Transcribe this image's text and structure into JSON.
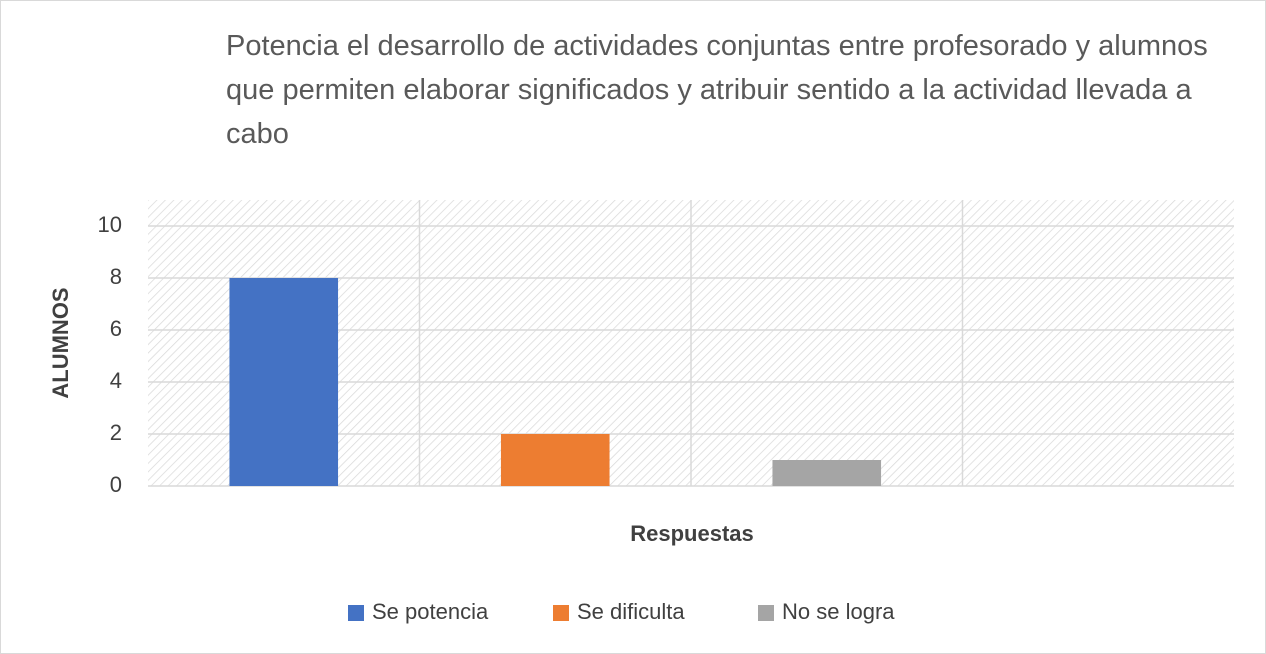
{
  "chart_data": {
    "type": "bar",
    "title": "Potencia el desarrollo de actividades conjuntas entre profesorado y alumnos que permiten elaborar significados y atribuir sentido a la actividad llevada a cabo",
    "x_label": "Respuestas",
    "y_label": "ALUMNOS",
    "categories": [
      null,
      null,
      null,
      null
    ],
    "series": [
      {
        "name": "Se potencia",
        "color": "#4472c4",
        "values": [
          8,
          null,
          null,
          null
        ]
      },
      {
        "name": "Se dificulta",
        "color": "#ed7d31",
        "values": [
          null,
          2,
          null,
          null
        ]
      },
      {
        "name": "No se logra",
        "color": "#a5a5a5",
        "values": [
          null,
          null,
          1,
          null
        ]
      }
    ],
    "ylim": [
      0,
      11
    ],
    "yticks": [
      0,
      2,
      4,
      6,
      8,
      10
    ],
    "grid": true,
    "legend": "bottom"
  }
}
